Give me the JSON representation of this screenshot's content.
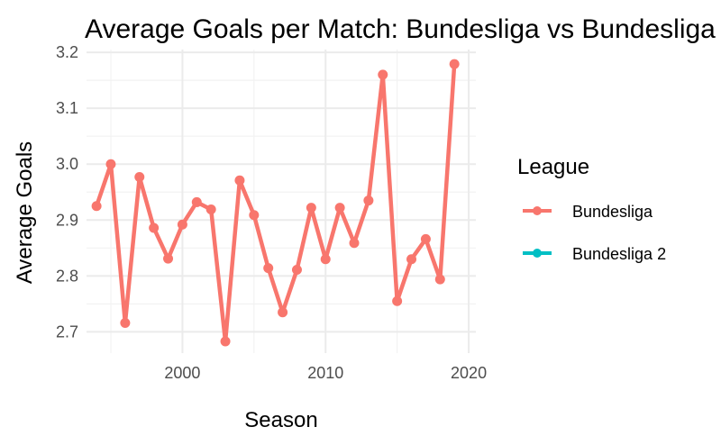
{
  "chart_data": {
    "type": "line",
    "title": "Average Goals per Match: Bundesliga vs Bundesliga 2",
    "xlabel": "Season",
    "ylabel": "Average Goals",
    "xlim": [
      1993.3,
      2020.5
    ],
    "ylim": [
      2.662,
      3.205
    ],
    "x_ticks": [
      2000,
      2010,
      2020
    ],
    "y_ticks": [
      2.7,
      2.8,
      2.9,
      3.0,
      3.1,
      3.2
    ],
    "x_tick_labels": [
      "2000",
      "2010",
      "2020"
    ],
    "y_tick_labels": [
      "2.7",
      "2.8",
      "2.9",
      "3.0",
      "3.1",
      "3.2"
    ],
    "grid": true,
    "legend": {
      "title": "League",
      "position": "right",
      "entries": [
        "Bundesliga",
        "Bundesliga 2"
      ]
    },
    "series": [
      {
        "name": "Bundesliga",
        "color": "#F8766D",
        "x": [
          1994,
          1995,
          1996,
          1997,
          1998,
          1999,
          2000,
          2001,
          2002,
          2003,
          2004,
          2005,
          2006,
          2007,
          2008,
          2009,
          2010,
          2011,
          2012,
          2013,
          2014,
          2015,
          2016,
          2017,
          2018,
          2019
        ],
        "y": [
          2.925,
          3.0,
          2.716,
          2.977,
          2.886,
          2.831,
          2.892,
          2.932,
          2.919,
          2.683,
          2.971,
          2.909,
          2.814,
          2.735,
          2.811,
          2.922,
          2.83,
          2.922,
          2.859,
          2.935,
          3.16,
          2.755,
          2.83,
          2.866,
          2.794,
          3.179
        ]
      },
      {
        "name": "Bundesliga 2",
        "color": "#00BFC4",
        "x": [],
        "y": []
      }
    ]
  }
}
